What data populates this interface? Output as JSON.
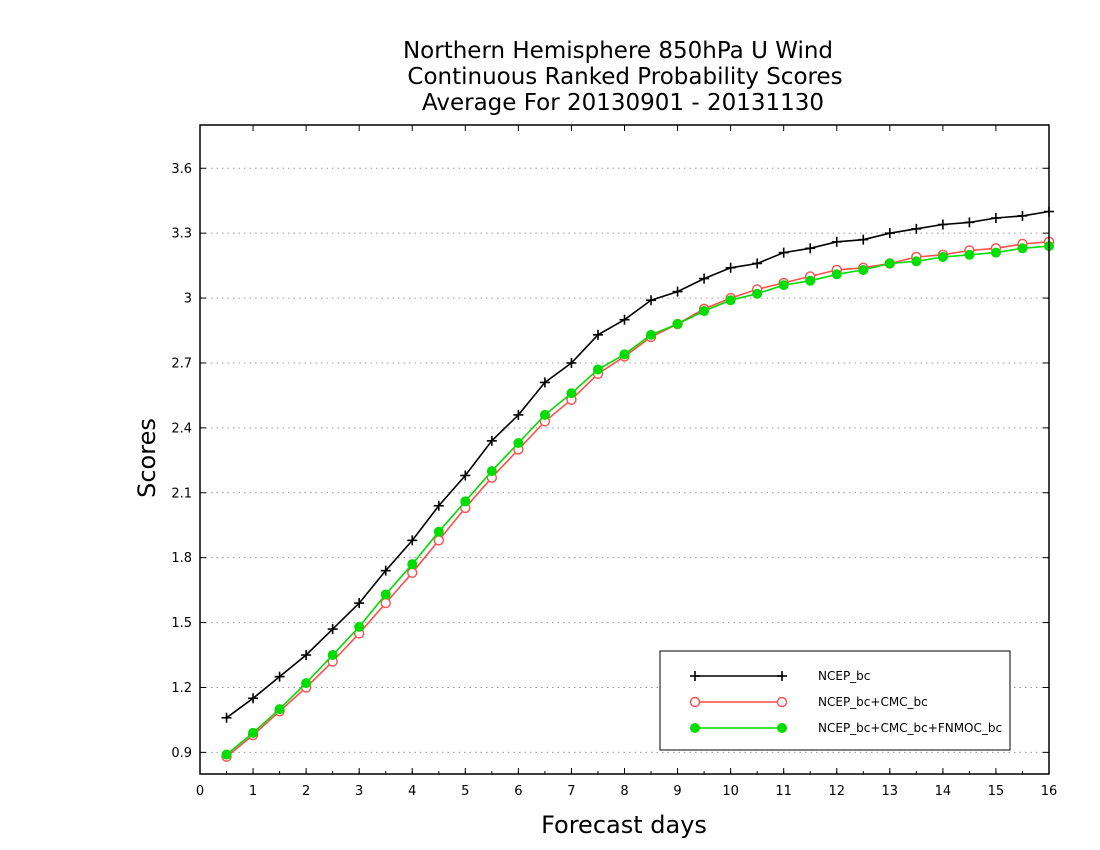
{
  "chart_data": {
    "type": "line",
    "title": [
      "Northern Hemisphere 850hPa U Wind",
      "Continuous Ranked Probability Scores",
      "Average For 20130901 - 20131130"
    ],
    "xlabel": "Forecast days",
    "ylabel": "Scores",
    "xlim": [
      0,
      16
    ],
    "ylim": [
      0.8,
      3.8
    ],
    "xticks": [
      0,
      1,
      2,
      3,
      4,
      5,
      6,
      7,
      8,
      9,
      10,
      11,
      12,
      13,
      14,
      15,
      16
    ],
    "yticks": [
      0.9,
      1.2,
      1.5,
      1.8,
      2.1,
      2.4,
      2.7,
      3.0,
      3.3,
      3.6
    ],
    "ytick_labels": [
      "0.9",
      "1.2",
      "1.5",
      "1.8",
      "2.1",
      "2.4",
      "2.7",
      "3",
      "3.3",
      "3.6"
    ],
    "grid": "horizontal dotted",
    "legend_position": "bottom-right",
    "x": [
      0.5,
      1,
      1.5,
      2,
      2.5,
      3,
      3.5,
      4,
      4.5,
      5,
      5.5,
      6,
      6.5,
      7,
      7.5,
      8,
      8.5,
      9,
      9.5,
      10,
      10.5,
      11,
      11.5,
      12,
      12.5,
      13,
      13.5,
      14,
      14.5,
      15,
      15.5,
      16
    ],
    "series": [
      {
        "name": "NCEP_bc",
        "color": "#000000",
        "marker": "plus",
        "values": [
          1.06,
          1.15,
          1.25,
          1.35,
          1.47,
          1.59,
          1.74,
          1.88,
          2.04,
          2.18,
          2.34,
          2.46,
          2.61,
          2.7,
          2.83,
          2.9,
          2.99,
          3.03,
          3.09,
          3.14,
          3.16,
          3.21,
          3.23,
          3.26,
          3.27,
          3.3,
          3.32,
          3.34,
          3.35,
          3.37,
          3.38,
          3.4
        ]
      },
      {
        "name": "NCEP_bc+CMC_bc",
        "color": "#ff4d4d",
        "marker": "open-circle",
        "values": [
          0.88,
          0.98,
          1.09,
          1.2,
          1.32,
          1.45,
          1.59,
          1.73,
          1.88,
          2.03,
          2.17,
          2.3,
          2.43,
          2.53,
          2.65,
          2.73,
          2.82,
          2.88,
          2.95,
          3.0,
          3.04,
          3.07,
          3.1,
          3.13,
          3.14,
          3.16,
          3.19,
          3.2,
          3.22,
          3.23,
          3.25,
          3.26
        ]
      },
      {
        "name": "NCEP_bc+CMC_bc+FNMOC_bc",
        "color": "#00dd00",
        "marker": "filled-circle",
        "values": [
          0.89,
          0.99,
          1.1,
          1.22,
          1.35,
          1.48,
          1.63,
          1.77,
          1.92,
          2.06,
          2.2,
          2.33,
          2.46,
          2.56,
          2.67,
          2.74,
          2.83,
          2.88,
          2.94,
          2.99,
          3.02,
          3.06,
          3.08,
          3.11,
          3.13,
          3.16,
          3.17,
          3.19,
          3.2,
          3.21,
          3.23,
          3.24
        ]
      }
    ]
  }
}
